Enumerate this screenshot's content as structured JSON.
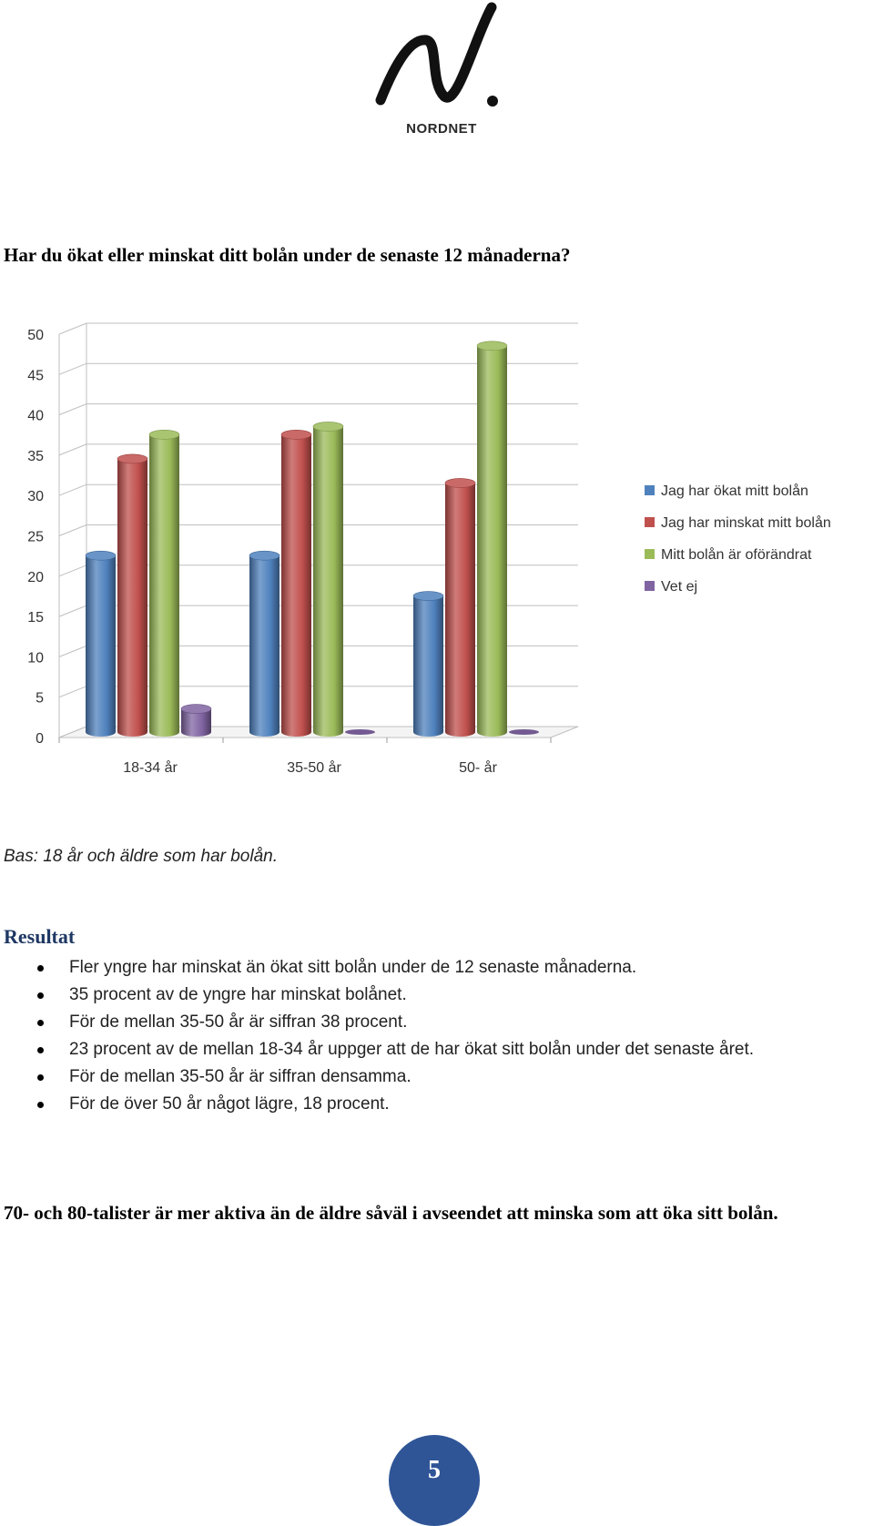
{
  "logo": {
    "brand": "NORDNET"
  },
  "question": "Har du ökat eller minskat ditt bolån under de senaste 12 månaderna?",
  "base_note": "Bas: 18 år och äldre som har bolån.",
  "result_title": "Resultat",
  "bullets": [
    "Fler yngre har minskat än ökat sitt bolån under de 12 senaste månaderna.",
    "35 procent av de yngre har minskat bolånet.",
    "För de mellan 35-50 år är siffran 38 procent.",
    "23 procent av de mellan 18-34 år uppger att de har ökat sitt bolån under det senaste året.",
    "För de mellan 35-50 år är siffran densamma.",
    "För de över 50 år något lägre, 18 procent."
  ],
  "conclusion": "70- och 80-talister är mer aktiva än de äldre såväl i avseendet att minska som att öka sitt bolån.",
  "page_number": "5",
  "chart_data": {
    "type": "bar",
    "style": "3d-cylinder",
    "categories": [
      "18-34 år",
      "35-50 år",
      "50- år"
    ],
    "series": [
      {
        "name": "Jag har ökat mitt bolån",
        "values": [
          23,
          23,
          18
        ],
        "color": "#4f81bd"
      },
      {
        "name": "Jag har minskat mitt bolån",
        "values": [
          35,
          38,
          32
        ],
        "color": "#c0504d"
      },
      {
        "name": "Mitt bolån är oförändrat",
        "values": [
          38,
          39,
          49
        ],
        "color": "#9bbb59"
      },
      {
        "name": "Vet ej",
        "values": [
          4,
          0,
          1
        ],
        "color": "#8064a2"
      }
    ],
    "yticks": [
      "0",
      "5",
      "10",
      "15",
      "20",
      "25",
      "30",
      "35",
      "40",
      "45",
      "50"
    ],
    "ylim": [
      0,
      50
    ],
    "grid": true,
    "legend": "right"
  }
}
